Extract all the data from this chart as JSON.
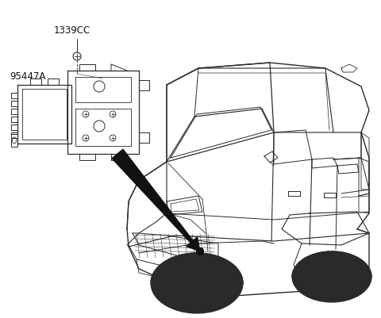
{
  "background_color": "#ffffff",
  "label_1339CC": "1339CC",
  "label_95447A": "95447A",
  "line_color": "#2a2a2a",
  "font_size_labels": 8.5,
  "fig_w": 4.8,
  "fig_h": 4.02,
  "dpi": 100
}
